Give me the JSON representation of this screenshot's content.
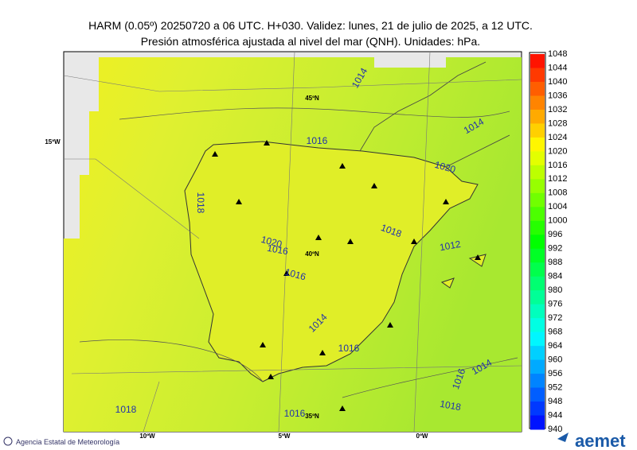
{
  "header": {
    "title": "HARM (0.05º) 20250720 a 06 UTC. H+030. Validez: lunes, 21 de julio de 2025, a 12 UTC.",
    "subtitle": "Presión atmosférica ajustada al nivel del mar (QNH). Unidades: hPa."
  },
  "map": {
    "isobar_labels": [
      "1014",
      "1016",
      "1014",
      "1020",
      "1018",
      "1018",
      "1012",
      "1020",
      "1016",
      "1016",
      "1014",
      "1016",
      "1016",
      "1014",
      "1018",
      "1018",
      "1016"
    ],
    "grid_labels": [
      "45ºN",
      "15ºW",
      "40ºN",
      "35ºN",
      "10ºW",
      "5ºW",
      "0ºW"
    ]
  },
  "colorbar": {
    "labels": [
      1048,
      1044,
      1040,
      1036,
      1032,
      1028,
      1024,
      1020,
      1016,
      1012,
      1008,
      1004,
      1000,
      996,
      992,
      988,
      984,
      980,
      976,
      972,
      968,
      964,
      960,
      956,
      952,
      948,
      944,
      940
    ]
  },
  "footer": {
    "agency": "Agencia Estatal de Meteorología",
    "logo": "aemet"
  }
}
